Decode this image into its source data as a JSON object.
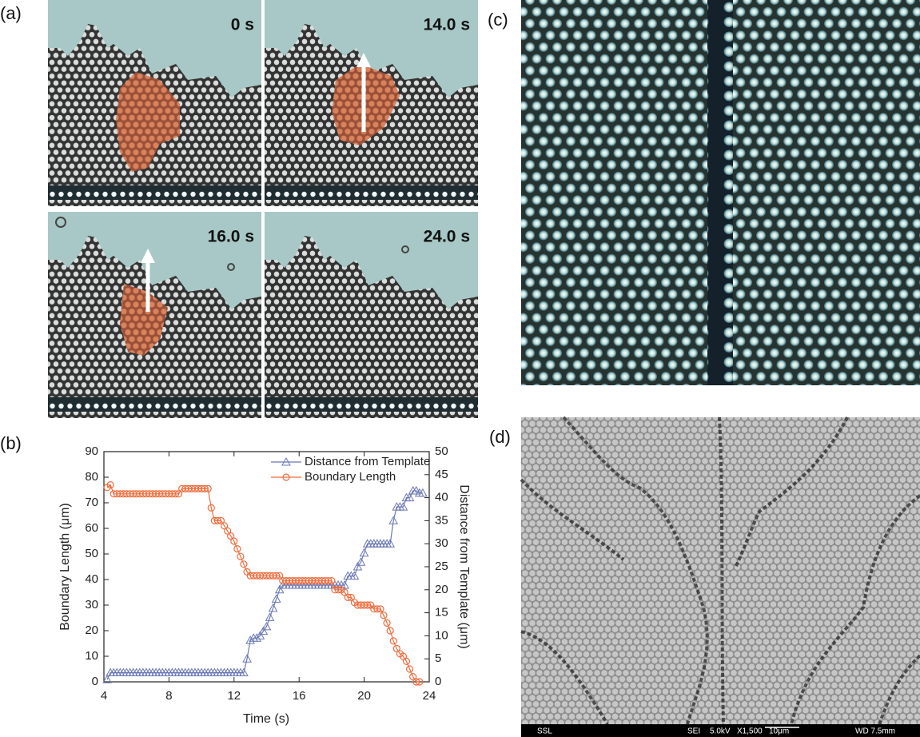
{
  "panels": {
    "a": {
      "label": "(a)",
      "timestamps": [
        "0 s",
        "14.0 s",
        "16.0 s",
        "24.0 s"
      ]
    },
    "b": {
      "label": "(b)"
    },
    "c": {
      "label": "(c)"
    },
    "d": {
      "label": "(d)",
      "info_bar": [
        "SSL",
        "SEI",
        "5.0kV",
        "X1,500",
        "10μm",
        "WD 7.5mm"
      ]
    }
  },
  "chart_data": {
    "type": "line",
    "x_label": "Time (s)",
    "y_label": "Boundary Length (μm)",
    "y2_label": "Distance from Template (μm)",
    "xlim": [
      4,
      24
    ],
    "xticks": [
      4,
      8,
      12,
      16,
      20,
      24
    ],
    "ylim": [
      0,
      90
    ],
    "yticks": [
      0,
      10,
      20,
      30,
      40,
      50,
      60,
      70,
      80,
      90
    ],
    "y2lim": [
      0,
      50
    ],
    "y2ticks": [
      0,
      5,
      10,
      15,
      20,
      25,
      30,
      35,
      40,
      45,
      50
    ],
    "grid": false,
    "legend": "upper right",
    "x": [
      4.2,
      4.4,
      4.6,
      4.8,
      5.0,
      5.2,
      5.4,
      5.6,
      5.8,
      6.0,
      6.2,
      6.4,
      6.6,
      6.8,
      7.0,
      7.2,
      7.4,
      7.6,
      7.8,
      8.0,
      8.2,
      8.4,
      8.6,
      8.8,
      9.0,
      9.2,
      9.4,
      9.6,
      9.8,
      10.0,
      10.2,
      10.4,
      10.6,
      10.8,
      11.0,
      11.2,
      11.4,
      11.6,
      11.8,
      12.0,
      12.2,
      12.4,
      12.6,
      12.8,
      13.0,
      13.2,
      13.4,
      13.6,
      13.8,
      14.0,
      14.2,
      14.4,
      14.6,
      14.8,
      15.0,
      15.2,
      15.4,
      15.6,
      15.8,
      16.0,
      16.2,
      16.4,
      16.6,
      16.8,
      17.0,
      17.2,
      17.4,
      17.6,
      17.8,
      18.0,
      18.2,
      18.4,
      18.6,
      18.8,
      19.0,
      19.2,
      19.4,
      19.6,
      19.8,
      20.0,
      20.2,
      20.4,
      20.6,
      20.8,
      21.0,
      21.2,
      21.4,
      21.6,
      21.8,
      22.0,
      22.2,
      22.4,
      22.6,
      22.8,
      23.0,
      23.2,
      23.4,
      23.6
    ],
    "series": [
      {
        "name": "Distance from Template",
        "color": "#6b78b4",
        "marker": "triangle",
        "axis": "y2",
        "values": [
          0.5,
          2,
          2,
          2,
          2,
          2,
          2,
          2,
          2,
          2,
          2,
          2,
          2,
          2,
          2,
          2,
          2,
          2,
          2,
          2,
          2,
          2,
          2,
          2,
          2,
          2,
          2,
          2,
          2,
          2,
          2,
          2,
          2,
          2,
          2,
          2,
          2,
          2,
          2,
          2,
          2,
          2,
          2,
          5,
          9,
          9.5,
          9.5,
          10,
          11,
          12,
          14,
          16,
          18,
          20,
          21,
          21,
          21,
          21,
          21,
          21,
          21,
          21,
          21,
          21,
          21,
          21,
          21,
          21,
          21,
          21,
          21,
          21,
          21,
          21,
          23,
          23,
          23,
          25,
          26,
          28,
          30,
          30,
          30,
          30,
          30,
          30,
          30,
          30,
          35,
          38,
          38,
          38,
          40,
          40,
          41.5,
          41.5,
          41,
          41
        ]
      },
      {
        "name": "Boundary Length",
        "color": "#ef6c3c",
        "marker": "circle",
        "axis": "y",
        "values": [
          76,
          77,
          73.5,
          73.5,
          73.5,
          73.5,
          73.5,
          73.5,
          73.5,
          73.5,
          73.5,
          73.5,
          73.5,
          73.5,
          73.5,
          73.5,
          73.5,
          73.5,
          73.5,
          73.5,
          73.5,
          73.5,
          73.5,
          75.5,
          75.5,
          75.5,
          75.5,
          75.5,
          75.5,
          75.5,
          75.5,
          75.5,
          68,
          63,
          63,
          63,
          61,
          59,
          57,
          55,
          52,
          49,
          46,
          43,
          41.5,
          41.5,
          41.5,
          41.5,
          41.5,
          41.5,
          41.5,
          41.5,
          41.5,
          41.5,
          39.5,
          39.5,
          39.5,
          39.5,
          39.5,
          39.5,
          39.5,
          39.5,
          39.5,
          39.5,
          39.5,
          39.5,
          39.5,
          39.5,
          39.5,
          39.5,
          36,
          36,
          36,
          35,
          33,
          33,
          31,
          30,
          30,
          30,
          30,
          30,
          28.5,
          28.5,
          28.5,
          26,
          23,
          20,
          16,
          13,
          11,
          10,
          8,
          5,
          2,
          0,
          0,
          null
        ]
      }
    ]
  }
}
